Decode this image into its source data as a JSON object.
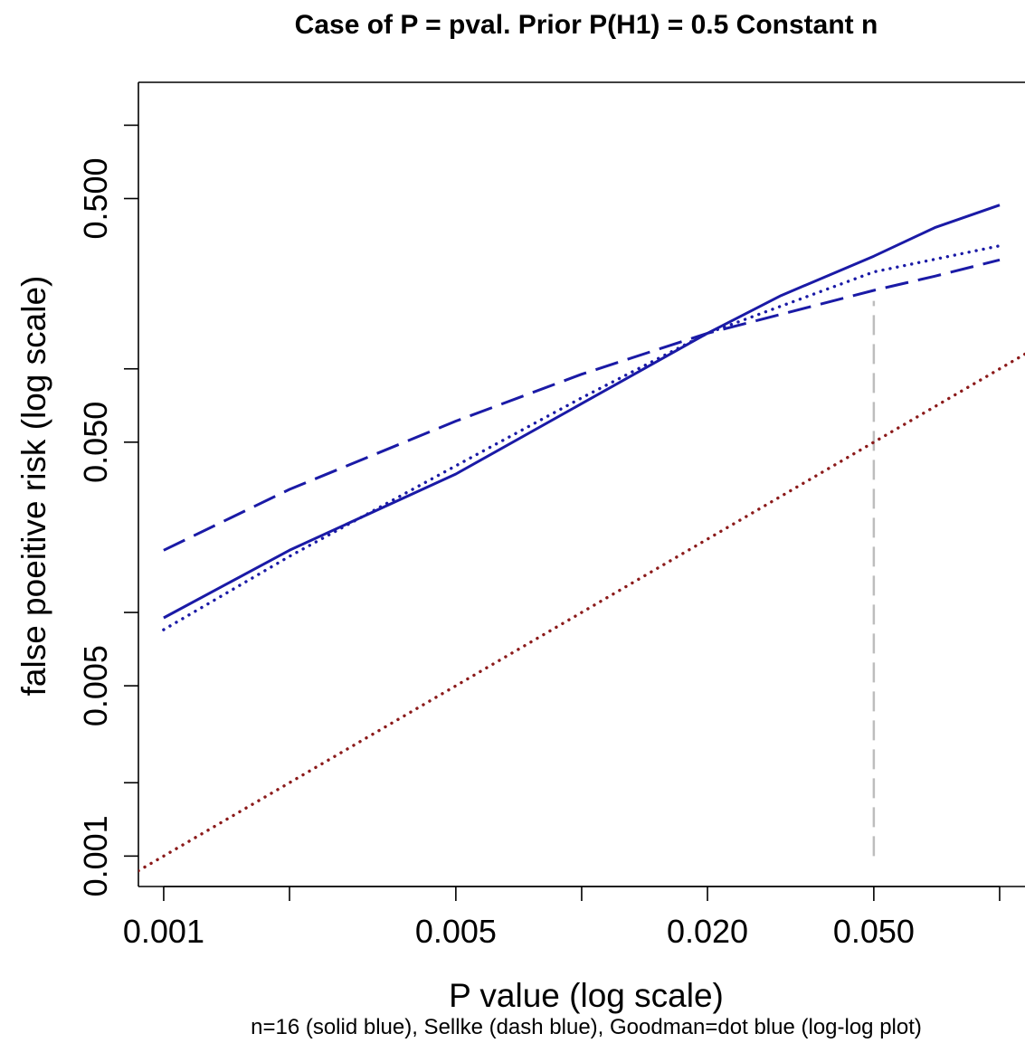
{
  "chart_data": {
    "type": "line",
    "title": "Case of P = pval.   Prior P(H1) =  0.5   Constant n",
    "xlabel": "P value (log scale)",
    "ylabel": "false poeitive risk (log scale)",
    "caption": "n=16 (solid blue), Sellke (dash blue), Goodman=dot blue  (log-log plot)",
    "x_scale": "log",
    "y_scale": "log",
    "xlim": [
      0.00087,
      0.115
    ],
    "ylim": [
      0.00075,
      1.5
    ],
    "x_ticks": [
      {
        "value": 0.001,
        "label": "0.001"
      },
      {
        "value": 0.002,
        "label": ""
      },
      {
        "value": 0.005,
        "label": "0.005"
      },
      {
        "value": 0.01,
        "label": ""
      },
      {
        "value": 0.02,
        "label": "0.020"
      },
      {
        "value": 0.05,
        "label": "0.050"
      },
      {
        "value": 0.1,
        "label": ""
      }
    ],
    "y_ticks": [
      {
        "value": 0.001,
        "label": "0.001"
      },
      {
        "value": 0.002,
        "label": ""
      },
      {
        "value": 0.005,
        "label": "0.005"
      },
      {
        "value": 0.01,
        "label": ""
      },
      {
        "value": 0.05,
        "label": "0.050"
      },
      {
        "value": 0.1,
        "label": ""
      },
      {
        "value": 0.5,
        "label": "0.500"
      },
      {
        "value": 1.0,
        "label": ""
      }
    ],
    "grid": false,
    "legend": "none",
    "series": [
      {
        "style": "solid",
        "color": "#1a1aa6",
        "x": [
          0.001,
          0.002,
          0.005,
          0.01,
          0.02,
          0.03,
          0.05,
          0.07,
          0.1
        ],
        "y": [
          0.0095,
          0.018,
          0.037,
          0.072,
          0.14,
          0.2,
          0.29,
          0.38,
          0.47
        ]
      },
      {
        "style": "dash",
        "color": "#1a1aa6",
        "x": [
          0.001,
          0.002,
          0.005,
          0.01,
          0.02,
          0.05,
          0.07,
          0.1
        ],
        "y": [
          0.018,
          0.032,
          0.061,
          0.095,
          0.14,
          0.21,
          0.24,
          0.28
        ]
      },
      {
        "style": "dot",
        "color": "#1a1aa6",
        "x": [
          0.001,
          0.002,
          0.005,
          0.01,
          0.02,
          0.05,
          0.1
        ],
        "y": [
          0.0085,
          0.017,
          0.04,
          0.076,
          0.14,
          0.25,
          0.32
        ]
      },
      {
        "style": "dot",
        "color": "#8b1a1a",
        "x": [
          0.00087,
          0.115
        ],
        "y": [
          0.00087,
          0.115
        ]
      }
    ],
    "reference_line": {
      "style": "dash",
      "color": "#bdbdbd",
      "x": 0.05,
      "y_range": [
        0.001,
        0.19
      ]
    }
  }
}
